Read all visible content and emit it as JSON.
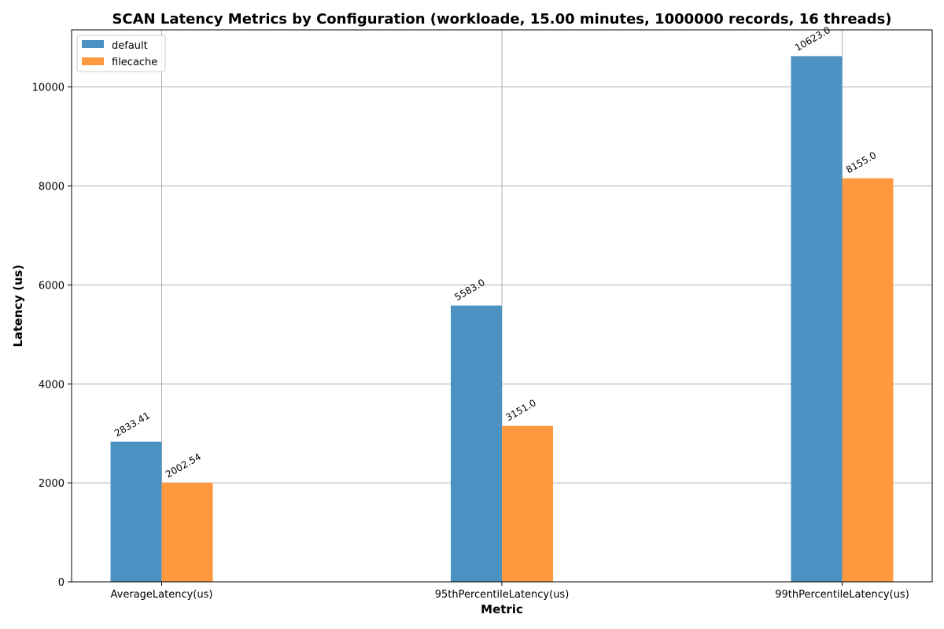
{
  "chart_data": {
    "type": "bar",
    "title": "SCAN Latency Metrics by Configuration (workloade, 15.00 minutes, 1000000 records, 16 threads)",
    "xlabel": "Metric",
    "ylabel": "Latency (us)",
    "categories": [
      "AverageLatency(us)",
      "95thPercentileLatency(us)",
      "99thPercentileLatency(us)"
    ],
    "series": [
      {
        "name": "default",
        "color": "#4b92c3",
        "values": [
          2833.41,
          5583.0,
          10623.0
        ],
        "labels": [
          "2833.41",
          "5583.0",
          "10623.0"
        ]
      },
      {
        "name": "filecache",
        "color": "#ff993f",
        "values": [
          2002.54,
          3151.0,
          8155.0
        ],
        "labels": [
          "2002.54",
          "3151.0",
          "8155.0"
        ]
      }
    ],
    "ylim": [
      0,
      11154
    ],
    "yticks": [
      0,
      2000,
      4000,
      6000,
      8000,
      10000
    ],
    "ytick_labels": [
      "0",
      "2000",
      "4000",
      "6000",
      "8000",
      "10000"
    ],
    "grid": true,
    "legend_position": "upper-left"
  }
}
